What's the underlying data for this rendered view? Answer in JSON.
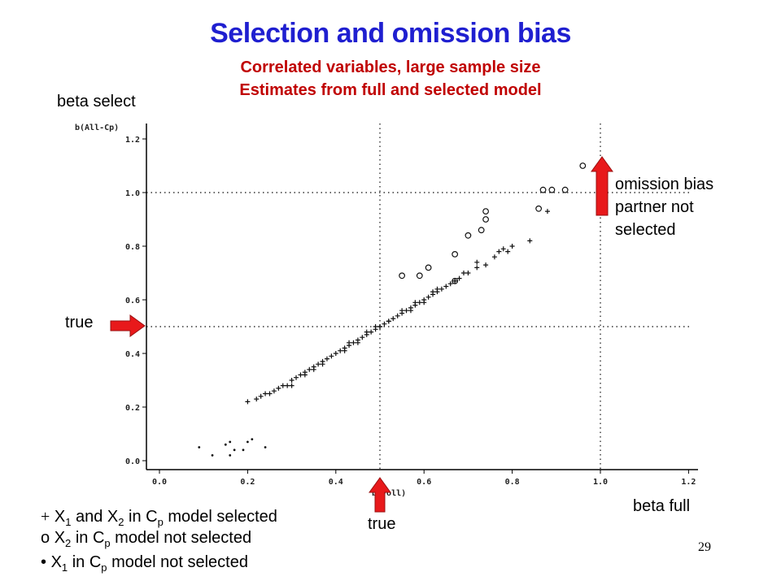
{
  "title": "Selection and omission bias",
  "subtitle_line1": "Correlated variables, large sample size",
  "subtitle_line2": "Estimates from full and selected model",
  "colors": {
    "title": "#1f1fd0",
    "subtitle": "#c00000",
    "arrow": "#e8191b",
    "arrow_edge": "#9a1010"
  },
  "annotations": {
    "beta_select": "beta select",
    "beta_full": "beta full",
    "true_left": "true",
    "true_bottom": "true",
    "omission_line1": "omission bias",
    "omission_line2": "partner not",
    "omission_line3": "selected"
  },
  "legend": {
    "plus": {
      "symbol": "+",
      "a": "X",
      "a_sub": "1",
      "mid": " and X",
      "b_sub": "2",
      "mid2": " in C",
      "c_sub": "p",
      "rest": " model selected"
    },
    "circle": {
      "symbol": "o",
      "a": "X",
      "a_sub": "2",
      "mid": " in C",
      "c_sub": "p",
      "rest": " model not selected"
    },
    "dot": {
      "symbol": "•",
      "a": "X",
      "a_sub": "1",
      "mid": " in C",
      "c_sub": "p",
      "rest": " model not selected"
    }
  },
  "page_number": "29",
  "chart_data": {
    "type": "scatter",
    "ylabel": "b(All-Cp)",
    "xlabel": "b(Voll)",
    "xlim": [
      -0.02,
      1.22
    ],
    "ylim": [
      -0.02,
      1.25
    ],
    "x_ticks": [
      "0.0",
      "0.2",
      "0.4",
      "0.6",
      "0.8",
      "1.0",
      "1.2"
    ],
    "y_ticks": [
      "0.0",
      "0.2",
      "0.4",
      "0.6",
      "0.8",
      "1.0",
      "1.2"
    ],
    "reference_lines": {
      "horizontal": [
        0.5,
        1.0
      ],
      "vertical": [
        0.5,
        1.0
      ]
    },
    "series": [
      {
        "marker": "plus",
        "points": [
          [
            0.2,
            0.22
          ],
          [
            0.22,
            0.23
          ],
          [
            0.23,
            0.24
          ],
          [
            0.24,
            0.25
          ],
          [
            0.25,
            0.25
          ],
          [
            0.27,
            0.27
          ],
          [
            0.28,
            0.28
          ],
          [
            0.29,
            0.28
          ],
          [
            0.3,
            0.3
          ],
          [
            0.31,
            0.31
          ],
          [
            0.32,
            0.32
          ],
          [
            0.33,
            0.33
          ],
          [
            0.34,
            0.34
          ],
          [
            0.35,
            0.35
          ],
          [
            0.36,
            0.36
          ],
          [
            0.37,
            0.37
          ],
          [
            0.38,
            0.38
          ],
          [
            0.39,
            0.39
          ],
          [
            0.4,
            0.4
          ],
          [
            0.41,
            0.41
          ],
          [
            0.42,
            0.42
          ],
          [
            0.43,
            0.43
          ],
          [
            0.44,
            0.44
          ],
          [
            0.45,
            0.45
          ],
          [
            0.46,
            0.46
          ],
          [
            0.47,
            0.47
          ],
          [
            0.48,
            0.48
          ],
          [
            0.49,
            0.49
          ],
          [
            0.5,
            0.5
          ],
          [
            0.51,
            0.51
          ],
          [
            0.52,
            0.52
          ],
          [
            0.53,
            0.53
          ],
          [
            0.54,
            0.54
          ],
          [
            0.55,
            0.55
          ],
          [
            0.56,
            0.56
          ],
          [
            0.57,
            0.57
          ],
          [
            0.58,
            0.58
          ],
          [
            0.59,
            0.59
          ],
          [
            0.6,
            0.6
          ],
          [
            0.61,
            0.61
          ],
          [
            0.62,
            0.62
          ],
          [
            0.63,
            0.63
          ],
          [
            0.64,
            0.64
          ],
          [
            0.65,
            0.65
          ],
          [
            0.66,
            0.66
          ],
          [
            0.67,
            0.67
          ],
          [
            0.68,
            0.68
          ],
          [
            0.7,
            0.7
          ],
          [
            0.72,
            0.72
          ],
          [
            0.74,
            0.73
          ],
          [
            0.76,
            0.76
          ],
          [
            0.78,
            0.79
          ],
          [
            0.8,
            0.8
          ],
          [
            0.84,
            0.82
          ],
          [
            0.88,
            0.93
          ],
          [
            0.3,
            0.28
          ],
          [
            0.33,
            0.32
          ],
          [
            0.37,
            0.36
          ],
          [
            0.42,
            0.41
          ],
          [
            0.45,
            0.44
          ],
          [
            0.47,
            0.48
          ],
          [
            0.5,
            0.5
          ],
          [
            0.52,
            0.52
          ],
          [
            0.55,
            0.56
          ],
          [
            0.58,
            0.59
          ],
          [
            0.6,
            0.59
          ],
          [
            0.63,
            0.64
          ],
          [
            0.67,
            0.67
          ],
          [
            0.69,
            0.7
          ],
          [
            0.72,
            0.74
          ],
          [
            0.77,
            0.78
          ],
          [
            0.79,
            0.78
          ],
          [
            0.26,
            0.26
          ],
          [
            0.35,
            0.34
          ],
          [
            0.43,
            0.44
          ],
          [
            0.49,
            0.5
          ],
          [
            0.57,
            0.56
          ],
          [
            0.62,
            0.63
          ]
        ]
      },
      {
        "marker": "circle",
        "points": [
          [
            0.55,
            0.69
          ],
          [
            0.59,
            0.69
          ],
          [
            0.61,
            0.72
          ],
          [
            0.67,
            0.67
          ],
          [
            0.67,
            0.77
          ],
          [
            0.7,
            0.84
          ],
          [
            0.73,
            0.86
          ],
          [
            0.74,
            0.9
          ],
          [
            0.74,
            0.93
          ],
          [
            0.86,
            0.94
          ],
          [
            0.87,
            1.01
          ],
          [
            0.89,
            1.01
          ],
          [
            0.92,
            1.01
          ],
          [
            0.96,
            1.1
          ]
        ]
      },
      {
        "marker": "dot",
        "points": [
          [
            0.09,
            0.05
          ],
          [
            0.12,
            0.02
          ],
          [
            0.15,
            0.06
          ],
          [
            0.16,
            0.02
          ],
          [
            0.16,
            0.07
          ],
          [
            0.17,
            0.04
          ],
          [
            0.19,
            0.04
          ],
          [
            0.2,
            0.07
          ],
          [
            0.21,
            0.08
          ],
          [
            0.24,
            0.05
          ]
        ]
      }
    ]
  }
}
